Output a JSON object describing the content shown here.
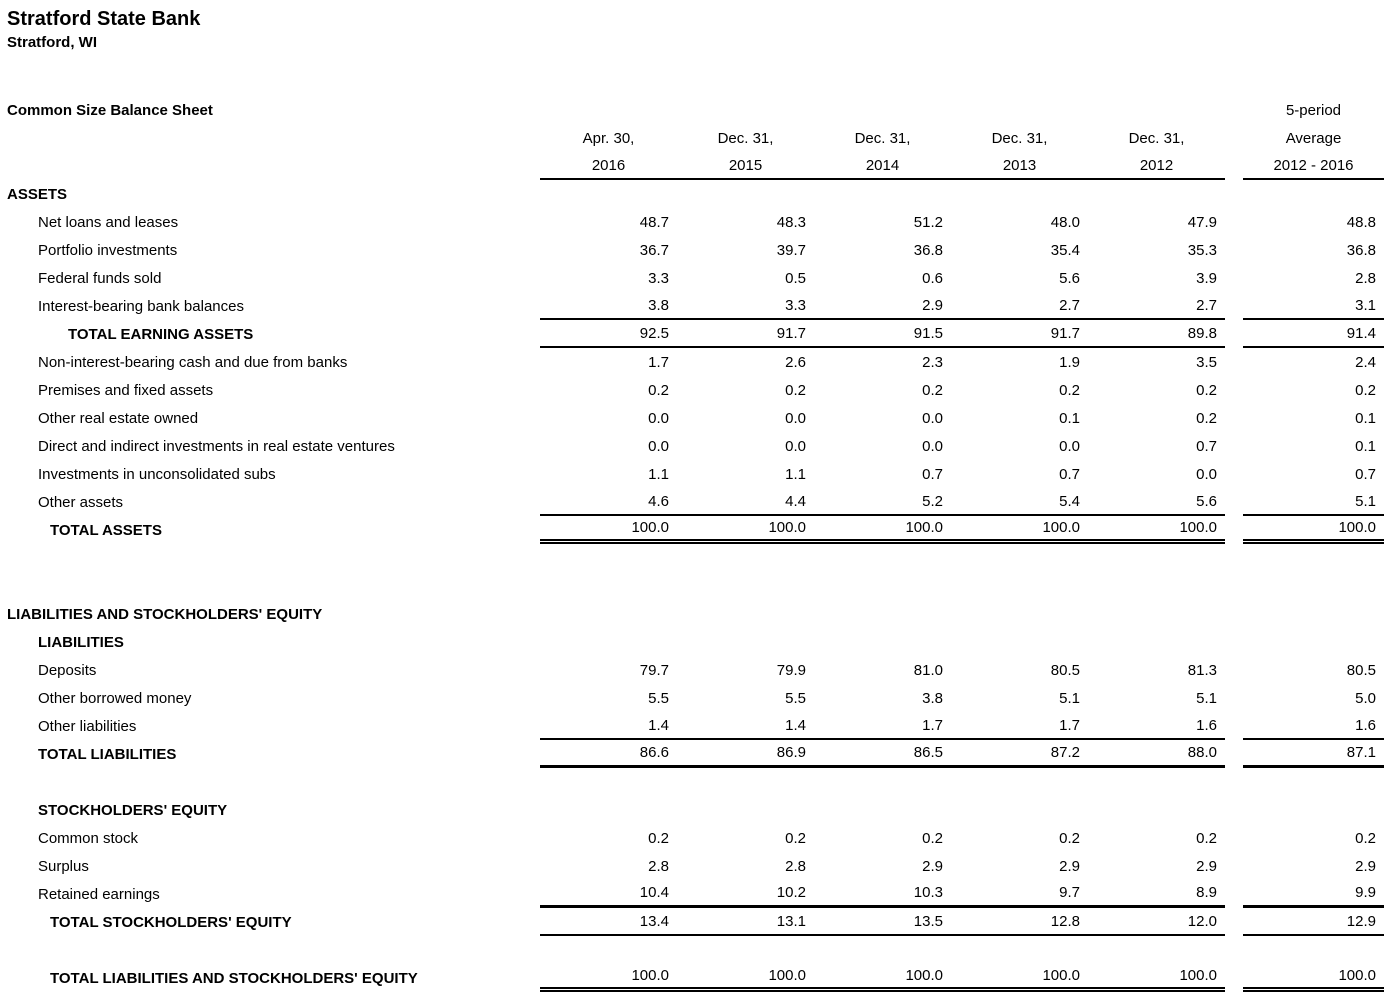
{
  "header": {
    "bank_name": "Stratford State Bank",
    "location": "Stratford, WI",
    "report_title": "Common Size Balance Sheet"
  },
  "columns": {
    "periods": [
      {
        "line1": "Apr. 30,",
        "line2": "2016"
      },
      {
        "line1": "Dec. 31,",
        "line2": "2015"
      },
      {
        "line1": "Dec. 31,",
        "line2": "2014"
      },
      {
        "line1": "Dec. 31,",
        "line2": "2013"
      },
      {
        "line1": "Dec. 31,",
        "line2": "2012"
      }
    ],
    "average": {
      "line1": "5-period",
      "line2": "Average",
      "line3": "2012 - 2016"
    }
  },
  "table": {
    "rows": [
      {
        "label": "ASSETS",
        "type": "section",
        "bold": true,
        "indent": 0,
        "values": [],
        "avg": null,
        "border": "none",
        "gap_before": 0
      },
      {
        "label": "Net loans and leases",
        "type": "item",
        "bold": false,
        "indent": 1,
        "values": [
          "48.7",
          "48.3",
          "51.2",
          "48.0",
          "47.9"
        ],
        "avg": "48.8",
        "border": "none",
        "gap_before": 0
      },
      {
        "label": "Portfolio investments",
        "type": "item",
        "bold": false,
        "indent": 1,
        "values": [
          "36.7",
          "39.7",
          "36.8",
          "35.4",
          "35.3"
        ],
        "avg": "36.8",
        "border": "none",
        "gap_before": 0
      },
      {
        "label": "Federal funds sold",
        "type": "item",
        "bold": false,
        "indent": 1,
        "values": [
          "3.3",
          "0.5",
          "0.6",
          "5.6",
          "3.9"
        ],
        "avg": "2.8",
        "border": "none",
        "gap_before": 0
      },
      {
        "label": "Interest-bearing bank balances",
        "type": "item",
        "bold": false,
        "indent": 1,
        "values": [
          "3.8",
          "3.3",
          "2.9",
          "2.7",
          "2.7"
        ],
        "avg": "3.1",
        "border": "single",
        "gap_before": 0
      },
      {
        "label": "TOTAL EARNING ASSETS",
        "type": "total",
        "bold": true,
        "indent": 3,
        "values": [
          "92.5",
          "91.7",
          "91.5",
          "91.7",
          "89.8"
        ],
        "avg": "91.4",
        "border": "single",
        "gap_before": 0
      },
      {
        "label": "Non-interest-bearing cash and due from banks",
        "type": "item",
        "bold": false,
        "indent": 1,
        "values": [
          "1.7",
          "2.6",
          "2.3",
          "1.9",
          "3.5"
        ],
        "avg": "2.4",
        "border": "none",
        "gap_before": 0
      },
      {
        "label": "Premises and fixed assets",
        "type": "item",
        "bold": false,
        "indent": 1,
        "values": [
          "0.2",
          "0.2",
          "0.2",
          "0.2",
          "0.2"
        ],
        "avg": "0.2",
        "border": "none",
        "gap_before": 0
      },
      {
        "label": "Other real estate owned",
        "type": "item",
        "bold": false,
        "indent": 1,
        "values": [
          "0.0",
          "0.0",
          "0.0",
          "0.1",
          "0.2"
        ],
        "avg": "0.1",
        "border": "none",
        "gap_before": 0
      },
      {
        "label": "Direct and indirect investments in real estate ventures",
        "type": "item",
        "bold": false,
        "indent": 1,
        "values": [
          "0.0",
          "0.0",
          "0.0",
          "0.0",
          "0.7"
        ],
        "avg": "0.1",
        "border": "none",
        "gap_before": 0
      },
      {
        "label": "Investments in unconsolidated subs",
        "type": "item",
        "bold": false,
        "indent": 1,
        "values": [
          "1.1",
          "1.1",
          "0.7",
          "0.7",
          "0.0"
        ],
        "avg": "0.7",
        "border": "none",
        "gap_before": 0
      },
      {
        "label": "Other assets",
        "type": "item",
        "bold": false,
        "indent": 1,
        "values": [
          "4.6",
          "4.4",
          "5.2",
          "5.4",
          "5.6"
        ],
        "avg": "5.1",
        "border": "single",
        "gap_before": 0
      },
      {
        "label": "TOTAL ASSETS",
        "type": "total",
        "bold": true,
        "indent": 2,
        "values": [
          "100.0",
          "100.0",
          "100.0",
          "100.0",
          "100.0"
        ],
        "avg": "100.0",
        "border": "double",
        "gap_before": 0
      },
      {
        "label": "LIABILITIES AND STOCKHOLDERS' EQUITY",
        "type": "section",
        "bold": true,
        "indent": 0,
        "values": [],
        "avg": null,
        "border": "none",
        "gap_before": 56
      },
      {
        "label": "LIABILITIES",
        "type": "section",
        "bold": true,
        "indent": 1,
        "values": [],
        "avg": null,
        "border": "none",
        "gap_before": 0
      },
      {
        "label": "Deposits",
        "type": "item",
        "bold": false,
        "indent": 1,
        "values": [
          "79.7",
          "79.9",
          "81.0",
          "80.5",
          "81.3"
        ],
        "avg": "80.5",
        "border": "none",
        "gap_before": 0
      },
      {
        "label": "Other borrowed money",
        "type": "item",
        "bold": false,
        "indent": 1,
        "values": [
          "5.5",
          "5.5",
          "3.8",
          "5.1",
          "5.1"
        ],
        "avg": "5.0",
        "border": "none",
        "gap_before": 0
      },
      {
        "label": "Other liabilities",
        "type": "item",
        "bold": false,
        "indent": 1,
        "values": [
          "1.4",
          "1.4",
          "1.7",
          "1.7",
          "1.6"
        ],
        "avg": "1.6",
        "border": "single",
        "gap_before": 0
      },
      {
        "label": "TOTAL LIABILITIES",
        "type": "total",
        "bold": true,
        "indent": 1,
        "values": [
          "86.6",
          "86.9",
          "86.5",
          "87.2",
          "88.0"
        ],
        "avg": "87.1",
        "border": "thick",
        "gap_before": 0
      },
      {
        "label": "STOCKHOLDERS' EQUITY",
        "type": "section",
        "bold": true,
        "indent": 1,
        "values": [],
        "avg": null,
        "border": "none",
        "gap_before": 28
      },
      {
        "label": "Common stock",
        "type": "item",
        "bold": false,
        "indent": 1,
        "values": [
          "0.2",
          "0.2",
          "0.2",
          "0.2",
          "0.2"
        ],
        "avg": "0.2",
        "border": "none",
        "gap_before": 0
      },
      {
        "label": "Surplus",
        "type": "item",
        "bold": false,
        "indent": 1,
        "values": [
          "2.8",
          "2.8",
          "2.9",
          "2.9",
          "2.9"
        ],
        "avg": "2.9",
        "border": "none",
        "gap_before": 0
      },
      {
        "label": "Retained earnings",
        "type": "item",
        "bold": false,
        "indent": 1,
        "values": [
          "10.4",
          "10.2",
          "10.3",
          "9.7",
          "8.9"
        ],
        "avg": "9.9",
        "border": "thick",
        "gap_before": 0
      },
      {
        "label": "TOTAL STOCKHOLDERS' EQUITY",
        "type": "total",
        "bold": true,
        "indent": 2,
        "values": [
          "13.4",
          "13.1",
          "13.5",
          "12.8",
          "12.0"
        ],
        "avg": "12.9",
        "border": "single",
        "gap_before": 0
      },
      {
        "label": "TOTAL LIABILITIES AND STOCKHOLDERS' EQUITY",
        "type": "total",
        "bold": true,
        "indent": 2,
        "values": [
          "100.0",
          "100.0",
          "100.0",
          "100.0",
          "100.0"
        ],
        "avg": "100.0",
        "border": "double",
        "gap_before": 28
      }
    ]
  }
}
